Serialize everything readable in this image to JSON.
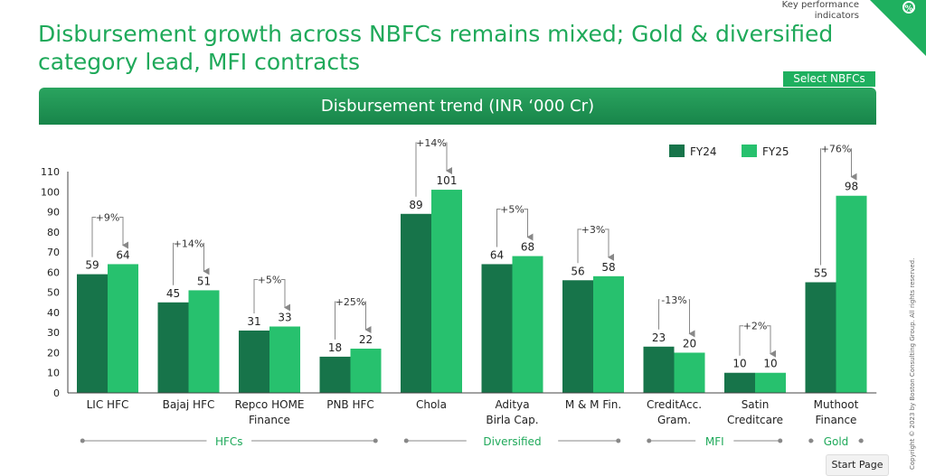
{
  "header": {
    "title": "Disbursement growth across NBFCs remains mixed; Gold & diversified category lead, MFI contracts",
    "kpi_label": "Key performance indicators",
    "kpi_icon": "percent-icon",
    "select_button": "Select NBFCs"
  },
  "banner": {
    "title": "Disbursement trend (INR ‘000 Cr)"
  },
  "footer": {
    "start_page": "Start Page",
    "copyright": "Copyright © 2023 by Boston Consulting Group. All rights reserved."
  },
  "colors": {
    "fy24": "#17744a",
    "fy25": "#27c16e",
    "accent": "#1fa95a",
    "axis": "#444444",
    "arrow": "#888888"
  },
  "chart_data": {
    "type": "bar",
    "title": "Disbursement trend (INR ‘000 Cr)",
    "categories": [
      [
        "LIC HFC"
      ],
      [
        "Bajaj HFC"
      ],
      [
        "Repco HOME",
        "Finance"
      ],
      [
        "PNB HFC"
      ],
      [
        "Chola"
      ],
      [
        "Aditya",
        "Birla Cap."
      ],
      [
        "M & M Fin."
      ],
      [
        "CreditAcc.",
        "Gram."
      ],
      [
        "Satin",
        "Creditcare"
      ],
      [
        "Muthoot",
        "Finance"
      ]
    ],
    "series": [
      {
        "name": "FY24",
        "values": [
          59,
          45,
          31,
          18,
          89,
          64,
          56,
          23,
          10,
          55
        ]
      },
      {
        "name": "FY25",
        "values": [
          64,
          51,
          33,
          22,
          101,
          68,
          58,
          20,
          10,
          98
        ]
      }
    ],
    "growth": [
      "+9%",
      "+14%",
      "+5%",
      "+25%",
      "+14%",
      "+5%",
      "+3%",
      "-13%",
      "+2%",
      "+76%"
    ],
    "ylim": [
      0,
      110
    ],
    "yticks": [
      0,
      10,
      20,
      30,
      40,
      50,
      60,
      70,
      80,
      90,
      100,
      110
    ],
    "legend_position": "top-right",
    "groups": [
      {
        "label": "HFCs",
        "from": 0,
        "to": 3
      },
      {
        "label": "Diversified",
        "from": 4,
        "to": 6
      },
      {
        "label": "MFI",
        "from": 7,
        "to": 8
      },
      {
        "label": "Gold",
        "from": 9,
        "to": 9
      }
    ]
  }
}
